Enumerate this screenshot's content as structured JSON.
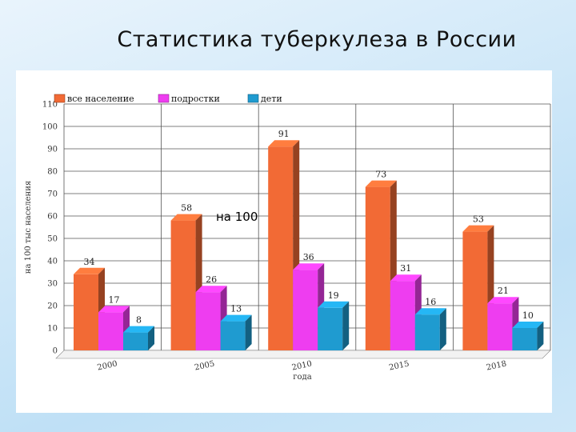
{
  "slide": {
    "title": "Статистика туберкулеза в России"
  },
  "chart_data": {
    "type": "bar",
    "categories": [
      "2000",
      "2005",
      "2010",
      "2015",
      "2018"
    ],
    "series": [
      {
        "name": "все население",
        "color": "#f26a35",
        "values": [
          34,
          58,
          91,
          73,
          53
        ]
      },
      {
        "name": "подростки",
        "color": "#ee3df0",
        "values": [
          17,
          26,
          36,
          31,
          21
        ]
      },
      {
        "name": "дети",
        "color": "#1f9bd0",
        "values": [
          8,
          13,
          19,
          16,
          10
        ]
      }
    ],
    "ylim": [
      0,
      110
    ],
    "yticks": [
      0,
      10,
      20,
      30,
      40,
      50,
      60,
      70,
      80,
      90,
      100,
      110
    ],
    "ylabel": "на 100 тыс населения",
    "xlabel": "года",
    "annotation": "на 100",
    "legend": "top-left",
    "grid": true,
    "bar_style": "3d"
  }
}
